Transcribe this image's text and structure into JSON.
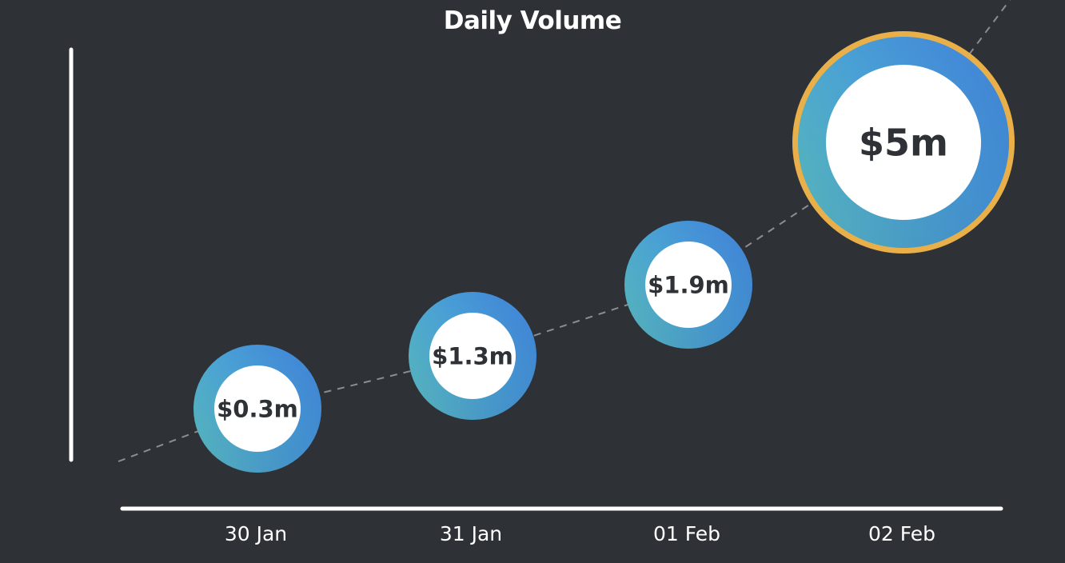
{
  "chart_data": {
    "type": "scatter",
    "title": "Daily Volume",
    "xlabel": "",
    "ylabel": "",
    "categories": [
      "30 Jan",
      "31 Jan",
      "01 Feb",
      "02 Feb"
    ],
    "values": [
      0.3,
      1.3,
      1.9,
      5
    ],
    "data_labels": [
      "$0.3m",
      "$1.3m",
      "$1.9m",
      "$5m"
    ],
    "unit": "$m",
    "trendline": "dashed",
    "highlight_index": 3,
    "grid": false,
    "colors": {
      "background": "#2e3135",
      "ring_start": "#5cc3b0",
      "ring_end": "#3f84dc",
      "highlight_ring": "#e9b04a",
      "trendline": "#8a8d91",
      "axis": "#ffffff"
    }
  }
}
